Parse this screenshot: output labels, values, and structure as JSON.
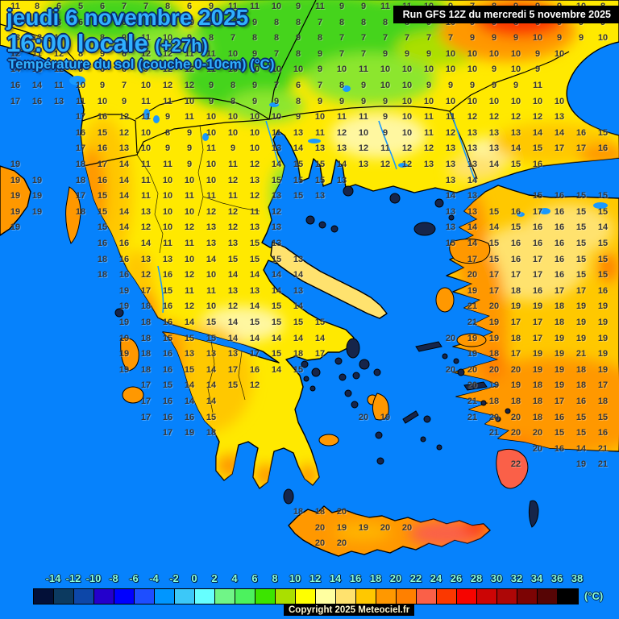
{
  "header": {
    "date_line": "jeudi 6 novembre 2025",
    "time_line": "16:00 locale",
    "run_offset": "(+27h)",
    "subtitle": "Température du sol (couche 0-10cm) (°C)",
    "run_info": "Run GFS 12Z du mercredi 5 novembre 2025",
    "title_color": "#2fb0ff"
  },
  "map": {
    "sea_color": "#0682fc",
    "region": "Greece / Aegean / western Turkey"
  },
  "temperature_grid": {
    "units": "°C",
    "rows": [
      "11 8 6 5 6 7 7 8 6 9 11 11 10 9 11 9 9 11 11 10 9 7 8 9 9 9 10 8",
      "13 12 8 6 7 8 9 9 10 11 11 9 8 8 7 8 8 8 8 9 10 9 9 8 9 9 9 9",
      "13 12 11 9 8 9 11 10 9 8 7 8 8 9 8 7 7 7 7 7 7 9 9 9 10 9 9 10",
      "12 11 12 8 9 6 12 12 11 11 10 9 7 8 9 7 7 9 9 9 10 10 10 10 9 10 . .",
      "14 13 12 9 6 6 9 12 12 11 10 10 10 10 9 10 11 10 10 10 10 10 9 10 9 . . .",
      "16 14 11 10 9 7 10 12 12 9 8 9 7 6 7 8 9 10 10 9 9 9 9 9 11 . . .",
      "17 16 13 11 10 9 11 11 10 9 8 9 9 8 9 9 9 9 10 10 10 10 10 10 10 10 . .",
      ". . . 17 16 12 11 9 11 10 10 10 10 9 10 11 11 9 10 11 11 12 12 12 12 13 . .",
      ". . . 16 15 12 10 8 9 10 10 10 11 13 11 12 10 9 10 11 12 13 13 13 14 14 16 15",
      ". . . 17 16 13 10 9 9 11 9 10 13 14 13 13 12 11 12 12 13 13 13 14 15 17 17 16",
      "19 . . 18 17 14 11 11 9 10 11 12 14 15 15 14 13 12 12 13 13 13 14 15 16 . . .",
      "19 19 . 18 16 14 11 10 10 10 12 13 15 15 15 13 . . . . 13 14 . . . . . .",
      "19 19 . 17 15 14 11 10 11 11 11 12 13 15 13 . . . . . 14 13 . . 15 16 15 15",
      "19 19 . 18 15 14 13 10 10 12 12 11 12 . . . . . . . 13 13 15 16 17 16 15 15",
      "19 . . . 15 14 12 10 12 13 12 13 13 . . . . . . . 13 14 14 15 16 16 15 14",
      ". . . . 16 16 14 11 11 13 13 15 13 . . . . . . . 15 14 15 16 16 16 15 15",
      ". . . . 18 16 13 13 10 14 15 15 15 13 . . . . . . . 17 15 16 17 16 15 15",
      ". . . . 18 16 12 16 12 10 14 14 14 14 . . . . . . . 20 17 17 17 16 15 15",
      ". . . . . 19 17 15 11 11 13 13 14 13 . . . . . . . 19 17 18 16 17 17 16",
      ". . . . . 19 18 16 12 10 12 14 15 14 . . . . . . . 21 20 19 19 18 19 19",
      ". . . . . 19 18 16 14 15 14 15 15 15 15 . . . . . . 21 19 17 17 18 19 19",
      ". . . . . 19 18 15 15 15 14 14 14 14 14 . . . . . 20 19 19 18 17 19 19 19",
      ". . . . . 19 18 16 13 13 13 17 15 18 17 . . . . . . 19 18 17 19 19 21 19",
      ". . . . . 19 18 16 15 14 17 16 14 15 . . . . . . 20 20 20 20 19 19 18 19",
      ". . . . . . 17 15 14 14 15 12 . . . . . . . . . 20 19 19 18 19 18 17",
      ". . . . . . 17 16 14 14 . . . . . . . . . . . 21 18 18 18 17 16 18",
      ". . . . . . 17 16 16 15 . . . . . . 20 19 . . . 21 20 20 18 16 15 15",
      ". . . . . . . 17 19 18 . . . . . . . . . . . . 21 20 20 15 15 16",
      ". . . . . . . . . . . . . . . . . . . . . . . . 20 16 14 21",
      ". . . . . . . . . . . . . . . . . . . . . . . 22 . . 19 21",
      ". . . . . . . . . . . . . . . . . . . . . . . . . . . .",
      ". . . . . . . . . . . . . . . . . . . . . . . . . . . .",
      ". . . . . . . . . . . . . 18 18 20 . . . . . . . . . . . .",
      ". . . . . . . . . . . . . . 20 19 19 20 20 . . . . . . . . .",
      ". . . . . . . . . . . . . . 20 20 . . . . . . . . . . . ."
    ]
  },
  "scale": {
    "unit": "(°C)",
    "label_color": "#8cffd9",
    "labels": [
      "-14",
      "-12",
      "-10",
      "-8",
      "-6",
      "-4",
      "-2",
      "0",
      "2",
      "4",
      "6",
      "8",
      "10",
      "12",
      "14",
      "16",
      "18",
      "20",
      "22",
      "24",
      "26",
      "28",
      "30",
      "32",
      "34",
      "36",
      "38"
    ],
    "colors": [
      "#031038",
      "#0c3a60",
      "#0d47a8",
      "#2400cc",
      "#0000ff",
      "#1e4eff",
      "#0096ff",
      "#3cc8f8",
      "#66ffff",
      "#70f587",
      "#4cf25e",
      "#3ce400",
      "#aadf00",
      "#ffff00",
      "#ffffa0",
      "#ffe26e",
      "#ffc800",
      "#ff9800",
      "#ff8000",
      "#fa6048",
      "#fb3800",
      "#f60400",
      "#cc0505",
      "#ad0707",
      "#7c0404",
      "#560505",
      "#000000"
    ]
  },
  "footer": {
    "copyright": "Copyright 2025 Meteociel.fr"
  }
}
